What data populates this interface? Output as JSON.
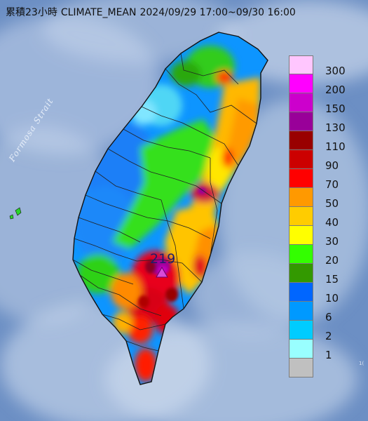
{
  "title": {
    "prefix": "累積23小時",
    "product": "CLIMATE_MEAN",
    "period": "2024/09/29 17:00~09/30 16:00"
  },
  "strait_label": "Formosa Strait",
  "max_station": {
    "value": "219",
    "marker": "triangle-marker-icon"
  },
  "edge_text": "1(",
  "legend": {
    "levels": [
      {
        "label": "300",
        "color": "#ffc6fe"
      },
      {
        "label": "200",
        "color": "#ff00ff"
      },
      {
        "label": "150",
        "color": "#cc00cc"
      },
      {
        "label": "130",
        "color": "#990099"
      },
      {
        "label": "110",
        "color": "#990000"
      },
      {
        "label": "90",
        "color": "#cc0000"
      },
      {
        "label": "70",
        "color": "#ff0000"
      },
      {
        "label": "50",
        "color": "#ff9900"
      },
      {
        "label": "40",
        "color": "#ffcc00"
      },
      {
        "label": "30",
        "color": "#ffff00"
      },
      {
        "label": "20",
        "color": "#33ff00"
      },
      {
        "label": "15",
        "color": "#339900"
      },
      {
        "label": "10",
        "color": "#0066ff"
      },
      {
        "label": "6",
        "color": "#0099ff"
      },
      {
        "label": "2",
        "color": "#00ccff"
      },
      {
        "label": "1",
        "color": "#99ffff"
      },
      {
        "label": "",
        "color": "#c0c0c0"
      }
    ]
  },
  "map": {
    "sea_color": "#6c8fc4",
    "cloud_color": "#d4e0f0",
    "outline_color": "#111111"
  }
}
